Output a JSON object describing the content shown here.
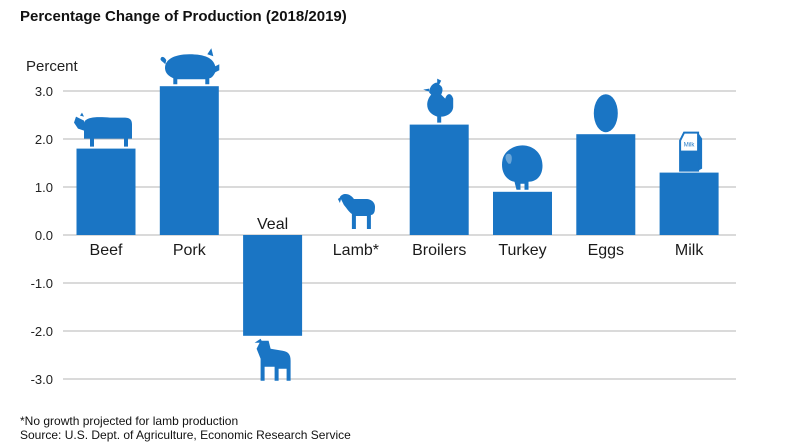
{
  "chart_data": {
    "type": "bar",
    "title": "Percentage Change of Production (2018/2019)",
    "ylabel": "Percent",
    "xlabel": "",
    "ylim": [
      -3.0,
      3.0
    ],
    "yticks": [
      "3.0",
      "2.0",
      "1.0",
      "0.0",
      "-1.0",
      "-2.0",
      "-3.0"
    ],
    "grid": true,
    "categories": [
      "Beef",
      "Pork",
      "Veal",
      "Lamb*",
      "Broilers",
      "Turkey",
      "Eggs",
      "Milk"
    ],
    "values": [
      1.8,
      3.1,
      -2.1,
      0.0,
      2.3,
      0.9,
      2.1,
      1.3
    ],
    "icons": [
      "cow-icon",
      "pig-icon",
      "calf-icon",
      "lamb-icon",
      "chicken-icon",
      "turkey-icon",
      "egg-icon",
      "milk-carton-icon"
    ],
    "icon_text": {
      "milk": "Milk"
    },
    "bar_color": "#1a75c4",
    "grid_color": "#b5b5b5"
  },
  "footnotes": {
    "note": "*No growth projected for lamb production",
    "source": "Source: U.S. Dept. of Agriculture, Economic Research Service"
  }
}
